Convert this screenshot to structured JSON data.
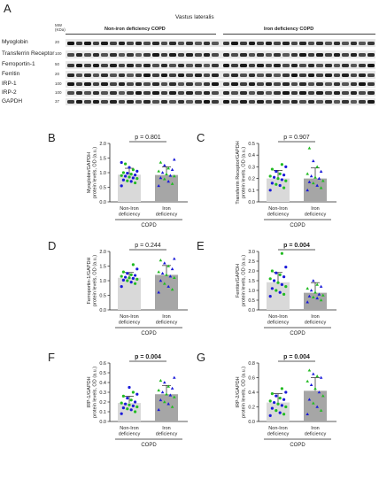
{
  "blot": {
    "panel_letter": "A",
    "tissue": "Vastus lateralis",
    "mw_header": "MW\n(KDa)",
    "groups": [
      "Non-iron deficiency COPD",
      "Iron deficiency COPD"
    ],
    "proteins": [
      {
        "name": "Myoglobin",
        "mw": "20"
      },
      {
        "name": "Transferrin Receptor",
        "mw": "100"
      },
      {
        "name": "Ferroportin-1",
        "mw": "50"
      },
      {
        "name": "Ferritin",
        "mw": "20"
      },
      {
        "name": "IRP-1",
        "mw": "100"
      },
      {
        "name": "IRP-2",
        "mw": "100"
      },
      {
        "name": "GAPDH",
        "mw": "37"
      }
    ]
  },
  "colors": {
    "bar_non": "#d9d9d9",
    "bar_iron": "#a6a6a6",
    "dot_blue": "#1a1ad9",
    "dot_green": "#22bb22"
  },
  "chart_data": [
    {
      "panel": "B",
      "type": "bar",
      "ylabel": "Myoglobin/GAPDH\nprotein levels, OD (a.u.)",
      "ylim": [
        0,
        2.0
      ],
      "ticks": [
        "0.0",
        "0.5",
        "1.0",
        "1.5",
        "2.0"
      ],
      "categories": [
        "Non-Iron\ndeficiency",
        "Iron\ndeficiency"
      ],
      "group_label": "COPD",
      "p_value": "p = 0.801",
      "p_bold": false,
      "means": [
        0.93,
        0.92
      ],
      "sd": [
        0.22,
        0.28
      ],
      "points": [
        [
          0.55,
          0.65,
          0.7,
          0.72,
          0.75,
          0.8,
          0.82,
          0.85,
          0.88,
          0.9,
          0.92,
          0.95,
          0.98,
          1.0,
          1.05,
          1.1,
          1.18,
          1.3,
          1.35
        ],
        [
          0.55,
          0.62,
          0.7,
          0.78,
          0.82,
          0.88,
          0.9,
          0.95,
          1.0,
          1.05,
          1.1,
          1.15,
          1.25,
          1.35,
          1.45
        ]
      ]
    },
    {
      "panel": "C",
      "type": "bar",
      "ylabel": "Transferrin Receptor/GAPDH\nprotein levels, OD (a.u.)",
      "ylim": [
        0,
        0.5
      ],
      "ticks": [
        "0.0",
        "0.1",
        "0.2",
        "0.3",
        "0.4",
        "0.5"
      ],
      "categories": [
        "Non-Iron\ndeficiency",
        "Iron\ndeficiency"
      ],
      "group_label": "COPD",
      "p_value": "p = 0.907",
      "p_bold": false,
      "means": [
        0.2,
        0.2
      ],
      "sd": [
        0.07,
        0.09
      ],
      "points": [
        [
          0.1,
          0.12,
          0.14,
          0.15,
          0.16,
          0.18,
          0.19,
          0.2,
          0.21,
          0.22,
          0.23,
          0.24,
          0.26,
          0.28,
          0.3,
          0.32
        ],
        [
          0.1,
          0.12,
          0.14,
          0.16,
          0.17,
          0.18,
          0.2,
          0.21,
          0.22,
          0.24,
          0.26,
          0.3,
          0.35,
          0.46
        ]
      ]
    },
    {
      "panel": "D",
      "type": "bar",
      "ylabel": "Ferroportin-1/GAPDH\nprotein levels, OD (a.u.)",
      "ylim": [
        0,
        2.0
      ],
      "ticks": [
        "0.0",
        "0.5",
        "1.0",
        "1.5",
        "2.0"
      ],
      "categories": [
        "Non-Iron\ndeficiency",
        "Iron\ndeficiency"
      ],
      "group_label": "COPD",
      "p_value": "p = 0.244",
      "p_bold": false,
      "means": [
        1.1,
        1.2
      ],
      "sd": [
        0.18,
        0.32
      ],
      "points": [
        [
          0.8,
          0.9,
          0.95,
          1.0,
          1.02,
          1.05,
          1.08,
          1.1,
          1.12,
          1.15,
          1.18,
          1.2,
          1.25,
          1.3,
          1.4,
          1.55
        ],
        [
          0.6,
          0.7,
          0.8,
          0.9,
          1.0,
          1.1,
          1.15,
          1.2,
          1.25,
          1.3,
          1.4,
          1.5,
          1.6,
          1.7,
          1.75
        ]
      ]
    },
    {
      "panel": "E",
      "type": "bar",
      "ylabel": "Ferritin/GAPDH\nprotein levels, OD (a.u.)",
      "ylim": [
        0,
        3.0
      ],
      "ticks": [
        "0.0",
        "0.5",
        "1.0",
        "1.5",
        "2.0",
        "2.5",
        "3.0"
      ],
      "categories": [
        "Non-Iron\ndeficiency",
        "Iron\ndeficiency"
      ],
      "group_label": "COPD",
      "p_value": "p = 0.004",
      "p_bold": true,
      "means": [
        1.42,
        0.88
      ],
      "sd": [
        0.5,
        0.52
      ],
      "points": [
        [
          0.7,
          0.8,
          0.9,
          1.0,
          1.1,
          1.2,
          1.3,
          1.4,
          1.5,
          1.6,
          1.7,
          1.8,
          1.9,
          2.0,
          2.2,
          2.9
        ],
        [
          0.4,
          0.5,
          0.6,
          0.65,
          0.7,
          0.75,
          0.8,
          0.9,
          1.0,
          1.1,
          1.2,
          1.3,
          1.5
        ]
      ]
    },
    {
      "panel": "F",
      "type": "bar",
      "ylabel": "IRP-1/GAPDH\nprotein levels, OD (a.u.)",
      "ylim": [
        0,
        0.6
      ],
      "ticks": [
        "0.0",
        "0.1",
        "0.2",
        "0.3",
        "0.4",
        "0.5",
        "0.6"
      ],
      "categories": [
        "Non-Iron\ndeficiency",
        "Iron\ndeficiency"
      ],
      "group_label": "COPD",
      "p_value": "p = 0.004",
      "p_bold": true,
      "means": [
        0.19,
        0.28
      ],
      "sd": [
        0.07,
        0.09
      ],
      "points": [
        [
          0.08,
          0.1,
          0.12,
          0.13,
          0.14,
          0.15,
          0.16,
          0.17,
          0.18,
          0.19,
          0.2,
          0.22,
          0.24,
          0.26,
          0.28,
          0.3,
          0.35
        ],
        [
          0.12,
          0.15,
          0.18,
          0.2,
          0.22,
          0.25,
          0.27,
          0.28,
          0.3,
          0.32,
          0.34,
          0.36,
          0.4,
          0.42,
          0.45
        ]
      ]
    },
    {
      "panel": "G",
      "type": "bar",
      "ylabel": "IRP-2/GAPDH\nprotein levels, OD (a.u.)",
      "ylim": [
        0,
        0.8
      ],
      "ticks": [
        "0.0",
        "0.2",
        "0.4",
        "0.6",
        "0.8"
      ],
      "categories": [
        "Non-Iron\ndeficiency",
        "Iron\ndeficiency"
      ],
      "group_label": "COPD",
      "p_value": "p = 0.004",
      "p_bold": true,
      "means": [
        0.26,
        0.42
      ],
      "sd": [
        0.12,
        0.18
      ],
      "points": [
        [
          0.08,
          0.1,
          0.12,
          0.15,
          0.18,
          0.2,
          0.22,
          0.24,
          0.26,
          0.28,
          0.3,
          0.32,
          0.35,
          0.38,
          0.4,
          0.45
        ],
        [
          0.1,
          0.15,
          0.2,
          0.25,
          0.3,
          0.35,
          0.4,
          0.45,
          0.5,
          0.55,
          0.6,
          0.62,
          0.65,
          0.7
        ]
      ]
    }
  ]
}
